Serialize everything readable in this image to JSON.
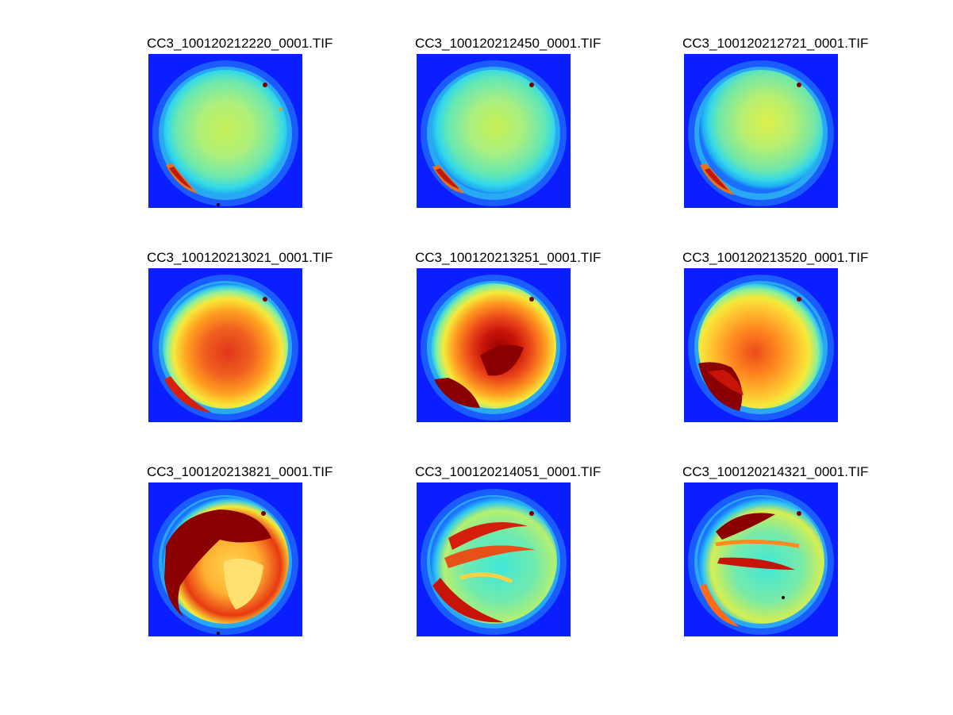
{
  "figure": {
    "panels": [
      {
        "title": "CC3_100120212220_0001.TIF",
        "intensity": "low"
      },
      {
        "title": "CC3_100120212450_0001.TIF",
        "intensity": "low"
      },
      {
        "title": "CC3_100120212721_0001.TIF",
        "intensity": "low"
      },
      {
        "title": "CC3_100120213021_0001.TIF",
        "intensity": "high"
      },
      {
        "title": "CC3_100120213251_0001.TIF",
        "intensity": "high"
      },
      {
        "title": "CC3_100120213520_0001.TIF",
        "intensity": "high"
      },
      {
        "title": "CC3_100120213821_0001.TIF",
        "intensity": "saturated"
      },
      {
        "title": "CC3_100120214051_0001.TIF",
        "intensity": "arcs"
      },
      {
        "title": "CC3_100120214321_0001.TIF",
        "intensity": "arcs"
      }
    ],
    "colormap": "jet",
    "colors": {
      "background_blue": "#0a1eff",
      "mid_cyan": "#33e6e6",
      "mid_green": "#a6f07a",
      "yellow": "#f5f03a",
      "orange": "#ff8c1a",
      "red": "#e8200f",
      "dark_red": "#8a0000"
    }
  }
}
